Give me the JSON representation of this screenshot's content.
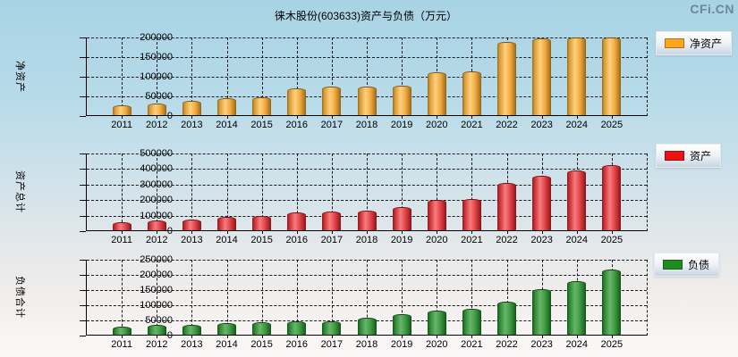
{
  "page": {
    "title": "徕木股份(603633)资产与负债（万元）",
    "logo": "CFi.CN"
  },
  "colors": {
    "net_assets": "#FFA41E",
    "assets": "#EE1111",
    "liabilities": "#1F8C1F",
    "background_top": "#A8D3E4",
    "background_bottom": "#FBF8F8"
  },
  "chart_data": [
    {
      "type": "bar",
      "title": "徕木股份(603633)资产与负债（万元）",
      "ylabel": "净资产",
      "legend": "净资产",
      "color_key": "orange",
      "color": "#FFA41E",
      "grid": true,
      "legend_position": "right",
      "ylim": [
        0,
        200000
      ],
      "yticks": [
        0,
        50000,
        100000,
        150000,
        200000
      ],
      "categories": [
        "2011",
        "2012",
        "2013",
        "2014",
        "2015",
        "2016",
        "2017",
        "2018",
        "2019",
        "2020",
        "2021",
        "2022",
        "2023",
        "2024",
        "2025"
      ],
      "values": [
        23000,
        28000,
        33000,
        40000,
        43000,
        66000,
        70000,
        70000,
        73000,
        107000,
        110000,
        185000,
        193000,
        196000,
        195000
      ]
    },
    {
      "type": "bar",
      "ylabel": "资产总计",
      "legend": "资产",
      "color_key": "red",
      "color": "#EE1111",
      "grid": true,
      "legend_position": "right",
      "ylim": [
        0,
        500000
      ],
      "yticks": [
        0,
        100000,
        200000,
        300000,
        400000,
        500000
      ],
      "categories": [
        "2011",
        "2012",
        "2013",
        "2014",
        "2015",
        "2016",
        "2017",
        "2018",
        "2019",
        "2020",
        "2021",
        "2022",
        "2023",
        "2024",
        "2025"
      ],
      "values": [
        47000,
        56000,
        64000,
        78000,
        84000,
        109000,
        115000,
        121000,
        142000,
        189000,
        193000,
        298000,
        346000,
        377000,
        416000
      ]
    },
    {
      "type": "bar",
      "ylabel": "负债合计",
      "legend": "负债",
      "color_key": "green",
      "color": "#1F8C1F",
      "grid": true,
      "legend_position": "right",
      "ylim": [
        0,
        250000
      ],
      "yticks": [
        0,
        50000,
        100000,
        150000,
        200000,
        250000
      ],
      "categories": [
        "2011",
        "2012",
        "2013",
        "2014",
        "2015",
        "2016",
        "2017",
        "2018",
        "2019",
        "2020",
        "2021",
        "2022",
        "2023",
        "2024",
        "2025"
      ],
      "values": [
        24000,
        28000,
        30000,
        35000,
        38000,
        40000,
        42000,
        54000,
        65000,
        76000,
        82000,
        107000,
        147000,
        175000,
        213000
      ]
    }
  ]
}
